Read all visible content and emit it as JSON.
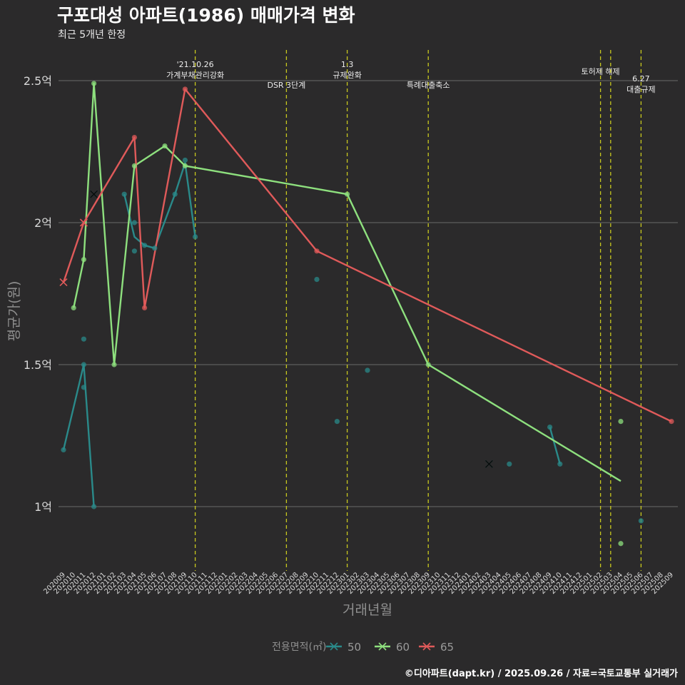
{
  "title": "구포대성 아파트(1986) 매매가격 변화",
  "subtitle": "최근 5개년 한정",
  "caption": "©디아파트(dapt.kr) / 2025.09.26 / 자료=국토교통부 실거래가",
  "colors": {
    "background": "#2b2a2b",
    "grid": "#6a6a6a",
    "event_line": "#c8c81e",
    "s50": "#2a8a8a",
    "s60": "#8ee07e",
    "s65": "#e05a5a"
  },
  "chart_data": {
    "type": "line",
    "title": "구포대성 아파트(1986) 매매가격 변화",
    "xlabel": "거래년월",
    "ylabel": "평균가(원)",
    "ylim": [
      0.78,
      2.68
    ],
    "yticks": [
      1.0,
      1.5,
      2.0,
      2.5
    ],
    "ytick_labels": [
      "1억",
      "1.5억",
      "2억",
      "2.5억"
    ],
    "x_start": "202009",
    "x_categories": [
      "202009",
      "202010",
      "202011",
      "202012",
      "202101",
      "202102",
      "202103",
      "202104",
      "202105",
      "202106",
      "202107",
      "202108",
      "202109",
      "202110",
      "202111",
      "202112",
      "202201",
      "202202",
      "202203",
      "202204",
      "202205",
      "202206",
      "202207",
      "202208",
      "202209",
      "202210",
      "202211",
      "202212",
      "202301",
      "202302",
      "202303",
      "202304",
      "202305",
      "202306",
      "202307",
      "202308",
      "202309",
      "202310",
      "202311",
      "202312",
      "202401",
      "202402",
      "202403",
      "202404",
      "202405",
      "202406",
      "202407",
      "202408",
      "202409",
      "202410",
      "202411",
      "202412",
      "202501",
      "202502",
      "202503",
      "202504",
      "202505",
      "202506",
      "202507",
      "202508",
      "202509"
    ],
    "legend": {
      "title": "전용면적(㎡)",
      "position": "bottom",
      "entries": [
        "50",
        "60",
        "65"
      ]
    },
    "events": [
      {
        "index": 13,
        "label": "'21.10.26\n가계부채관리강화"
      },
      {
        "index": 22,
        "label": "DSR 3단계"
      },
      {
        "index": 28,
        "label": "1.3\n규제완화"
      },
      {
        "index": 36,
        "label": "특례대출축소"
      },
      {
        "index": 53,
        "label": "토허제 해제"
      },
      {
        "index": 54,
        "label": ""
      },
      {
        "index": 57,
        "label": "6.27\n대출규제"
      }
    ],
    "series": [
      {
        "name": "50",
        "color_key": "s50",
        "lines": [
          [
            [
              0,
              1.2
            ],
            [
              2,
              1.5
            ],
            [
              3,
              1.0
            ]
          ],
          [
            [
              6,
              2.1
            ],
            [
              7,
              1.95
            ],
            [
              8,
              1.92
            ],
            [
              9,
              1.91
            ],
            [
              11,
              2.1
            ],
            [
              12,
              2.21
            ],
            [
              13,
              1.95
            ]
          ],
          [
            [
              48,
              1.28
            ],
            [
              49,
              1.15
            ]
          ]
        ],
        "points": [
          [
            0,
            1.2
          ],
          [
            2,
            1.59
          ],
          [
            2,
            1.5
          ],
          [
            2,
            1.42
          ],
          [
            3,
            1.0
          ],
          [
            6,
            2.1
          ],
          [
            7,
            2.0
          ],
          [
            7,
            1.9
          ],
          [
            8,
            1.92
          ],
          [
            9,
            1.91
          ],
          [
            11,
            2.1
          ],
          [
            12,
            2.22
          ],
          [
            13,
            1.95
          ],
          [
            25,
            1.8
          ],
          [
            27,
            1.3
          ],
          [
            30,
            1.48
          ],
          [
            44,
            1.15
          ],
          [
            48,
            1.28
          ],
          [
            49,
            1.15
          ],
          [
            57,
            0.95
          ]
        ],
        "crosses": [
          [
            3,
            2.1
          ],
          [
            42,
            1.15
          ]
        ]
      },
      {
        "name": "60",
        "color_key": "s60",
        "lines": [
          [
            [
              1,
              1.7
            ],
            [
              2,
              1.87
            ],
            [
              3,
              2.49
            ],
            [
              5,
              1.5
            ],
            [
              7,
              2.2
            ],
            [
              10,
              2.27
            ],
            [
              12,
              2.2
            ],
            [
              28,
              2.1
            ],
            [
              36,
              1.5
            ],
            [
              55,
              1.09
            ]
          ]
        ],
        "points": [
          [
            1,
            1.7
          ],
          [
            2,
            1.87
          ],
          [
            3,
            2.49
          ],
          [
            5,
            1.5
          ],
          [
            7,
            2.2
          ],
          [
            10,
            2.27
          ],
          [
            12,
            2.2
          ],
          [
            28,
            2.1
          ],
          [
            36,
            1.5
          ],
          [
            55,
            1.3
          ],
          [
            55,
            0.87
          ]
        ],
        "crosses": []
      },
      {
        "name": "65",
        "color_key": "s65",
        "lines": [
          [
            [
              0,
              1.79
            ],
            [
              2,
              2.0
            ],
            [
              7,
              2.3
            ],
            [
              8,
              1.7
            ],
            [
              12,
              2.47
            ],
            [
              25,
              1.9
            ],
            [
              60,
              1.3
            ]
          ]
        ],
        "points": [
          [
            7,
            2.3
          ],
          [
            8,
            1.7
          ],
          [
            12,
            2.47
          ],
          [
            25,
            1.9
          ],
          [
            60,
            1.3
          ]
        ],
        "crosses": [
          [
            0,
            1.79
          ],
          [
            2,
            2.0
          ]
        ]
      }
    ]
  }
}
